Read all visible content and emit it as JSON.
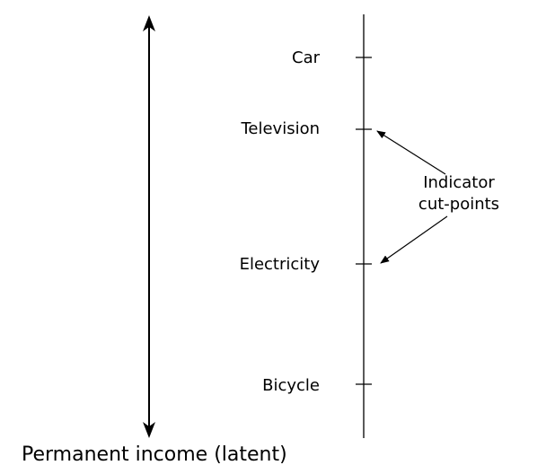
{
  "indicators": [
    {
      "label": "Car"
    },
    {
      "label": "Television"
    },
    {
      "label": "Electricity"
    },
    {
      "label": "Bicycle"
    }
  ],
  "annotation": {
    "line1": "Indicator",
    "line2": "cut-points"
  },
  "latent_axis_label": "Permanent income (latent)",
  "colors": {
    "ink": "#000000",
    "background": "#ffffff"
  }
}
